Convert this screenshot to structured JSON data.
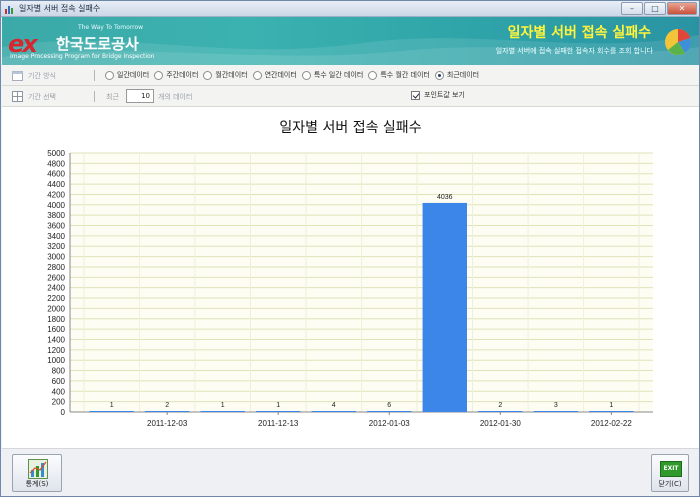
{
  "window": {
    "title": "일자별 서버 접속 실패수",
    "buttons": {
      "minimize": "–",
      "maximize": "□",
      "close": "✕"
    }
  },
  "banner": {
    "logo_mark": "ex",
    "company": "한국도로공사",
    "tagline": "The Way To Tomorrow",
    "subtitle_en": "Image Processing Program for Bridge Inspection",
    "title": "일자별 서버 접속 실패수",
    "description": "일자별 서버에 접속 실패한 접속자 회수를 조회 합니다",
    "colors": {
      "title": "#fff43a",
      "logo": "#d7262e",
      "banner": "#3bb2b0"
    }
  },
  "options": {
    "period_type_label": "기간 방식",
    "period_types": [
      {
        "label": "일간데이터",
        "selected": false
      },
      {
        "label": "주간데이터",
        "selected": false
      },
      {
        "label": "월간데이터",
        "selected": false
      },
      {
        "label": "연간데이터",
        "selected": false
      },
      {
        "label": "특수 일간 데이터",
        "selected": false
      },
      {
        "label": "특수 월간 데이터",
        "selected": false
      },
      {
        "label": "최근데이터",
        "selected": true
      }
    ],
    "period_select_label": "기간 선택",
    "recent_label": "최근",
    "recent_value": "10",
    "recent_suffix": "개의 데이터",
    "show_points_label": "포인트값 보기",
    "show_points_checked": true
  },
  "chart_data": {
    "type": "bar",
    "title": "일자별 서버 접속 실패수",
    "ylim": [
      0,
      5000
    ],
    "ytick_step": 200,
    "grid": true,
    "bar_color": "#3b86e8",
    "values": [
      1,
      2,
      1,
      1,
      4,
      6,
      4036,
      2,
      3,
      1
    ],
    "data_labels": [
      "1",
      "2",
      "1",
      "1",
      "4",
      "6",
      "4036",
      "2",
      "3",
      "1"
    ],
    "x_tick_labels": [
      {
        "index": 1,
        "label": "2011-12-03"
      },
      {
        "index": 3,
        "label": "2011-12-13"
      },
      {
        "index": 5,
        "label": "2012-01-03"
      },
      {
        "index": 7,
        "label": "2012-01-30"
      },
      {
        "index": 9,
        "label": "2012-02-22"
      }
    ]
  },
  "footer": {
    "stats_button": "통계(S)",
    "close_button": "닫기(C)",
    "exit_icon_text": "EXIT"
  }
}
